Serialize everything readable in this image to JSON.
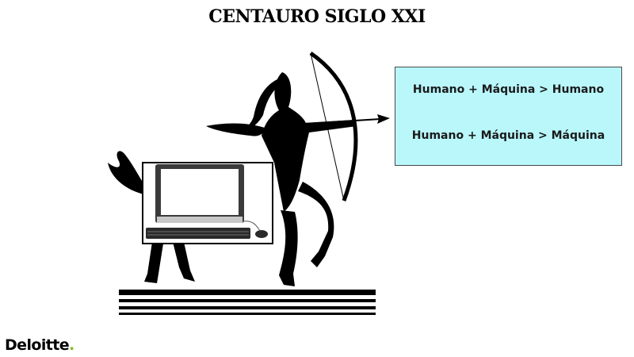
{
  "slide": {
    "title": "CENTAURO SIGLO XXI"
  },
  "info_box": {
    "lines": [
      "Humano + Máquina > Humano",
      "Humano + Máquina > Máquina"
    ],
    "background": "#b9f7fb"
  },
  "logo": {
    "text": "Deloitte",
    "dot": ".",
    "dot_color": "#86bc25"
  }
}
